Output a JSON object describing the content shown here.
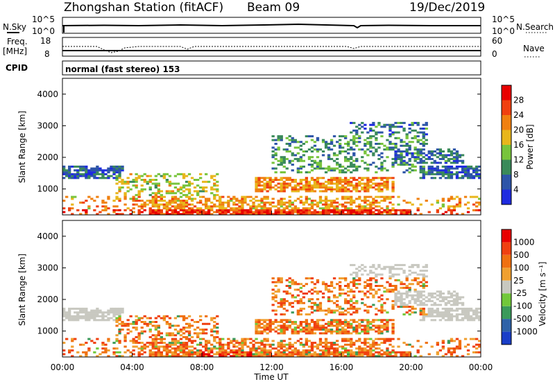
{
  "header": {
    "station": "Zhongshan Station (fitACF)",
    "beam": "Beam 09",
    "date": "19/Dec/2019"
  },
  "top_panels": {
    "nsky_label": "N.Sky",
    "nsky_ticks": [
      "10^5",
      "10^0"
    ],
    "nsearch_label": "N.Search",
    "nsearch_ticks": [
      "10^5",
      "10^0"
    ],
    "freq_label_1": "Freq.",
    "freq_label_2": "[MHz]",
    "freq_ticks": [
      "18",
      "8"
    ],
    "nave_label": "Nave",
    "nave_ticks": [
      "60",
      "0"
    ],
    "cpid_label": "CPID",
    "cpid_text": "normal (fast stereo) 153"
  },
  "chart_data": [
    {
      "type": "heatmap",
      "name": "power",
      "ylabel": "Slant Range [km]",
      "ylim": [
        180,
        4500
      ],
      "yticks": [
        "1000",
        "2000",
        "3000",
        "4000"
      ],
      "xlim": [
        "00:00",
        "24:00"
      ],
      "colorbar_label": "Power [dB]",
      "colorbar_ticks": [
        "4",
        "8",
        "12",
        "16",
        "20",
        "24",
        "28"
      ],
      "colors": [
        "#1f2be0",
        "#2d55a8",
        "#3a8a5a",
        "#78c43c",
        "#e8b61c",
        "#f08010",
        "#f04010",
        "#e80000"
      ]
    },
    {
      "type": "heatmap",
      "name": "velocity",
      "ylabel": "Slant Range [km]",
      "ylim": [
        180,
        4500
      ],
      "yticks": [
        "1000",
        "2000",
        "3000",
        "4000"
      ],
      "xlim": [
        "00:00",
        "24:00"
      ],
      "xlabel": "Time UT",
      "xticks": [
        "00:00",
        "04:00",
        "08:00",
        "12:00",
        "16:00",
        "20:00",
        "00:00"
      ],
      "colorbar_label": "Velocity [m s⁻¹]",
      "colorbar_ticks": [
        "1000",
        "500",
        "100",
        "25",
        "-25",
        "-100",
        "-500",
        "-1000"
      ],
      "colors": [
        "#1a3ec8",
        "#2e62a8",
        "#3a9a5a",
        "#72c83a",
        "#c8c8c0",
        "#f0a030",
        "#f07010",
        "#f04010",
        "#e80000"
      ]
    }
  ]
}
